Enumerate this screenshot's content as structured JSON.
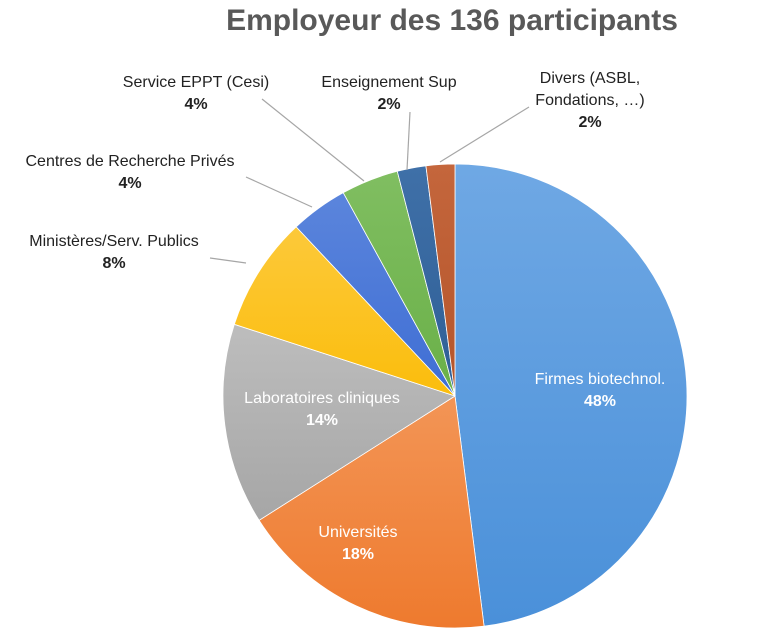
{
  "chart_data": {
    "type": "pie",
    "title": "Employeur des 136 participants",
    "start_angle_deg": 0,
    "direction": "clockwise",
    "slices": [
      {
        "name": "Firmes biotechnol.",
        "value": 48,
        "label": "48%",
        "color": "#4a90d9",
        "color_light": "#6fa8e4",
        "label_inside": true
      },
      {
        "name": "Universités",
        "value": 18,
        "label": "18%",
        "color": "#ee7a2e",
        "color_light": "#f39556",
        "label_inside": true
      },
      {
        "name": "Laboratoires cliniques",
        "value": 14,
        "label": "14%",
        "color": "#a6a6a6",
        "color_light": "#bdbdbd",
        "label_inside": true
      },
      {
        "name": "Ministères/Serv. Publics",
        "value": 8,
        "label": "8%",
        "color": "#fbbd0c",
        "color_light": "#fcc93a",
        "label_inside": false
      },
      {
        "name": "Centres de Recherche Privés",
        "value": 4,
        "label": "4%",
        "color": "#3f6ed4",
        "color_light": "#5b85dc",
        "label_inside": false
      },
      {
        "name": "Service EPPT (Cesi)",
        "value": 4,
        "label": "4%",
        "color": "#6ab048",
        "color_light": "#80be61",
        "label_inside": false
      },
      {
        "name": "Enseignement Sup",
        "value": 2,
        "label": "2%",
        "color": "#2f5f96",
        "color_light": "#3f70a8",
        "label_inside": false
      },
      {
        "name": "Divers (ASBL, Fondations, …)",
        "name_lines": [
          "Divers (ASBL,",
          "Fondations, …)"
        ],
        "value": 2,
        "label": "2%",
        "color": "#b5552b",
        "color_light": "#c4663c",
        "label_inside": false
      }
    ]
  }
}
